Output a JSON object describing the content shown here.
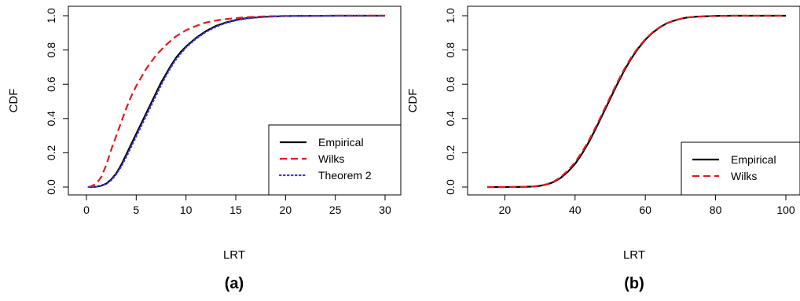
{
  "chart_data": [
    {
      "type": "line",
      "panel_label": "(a)",
      "xlabel": "LRT",
      "ylabel": "CDF",
      "xlim": [
        0,
        30
      ],
      "ylim": [
        0,
        1
      ],
      "xticks": [
        0,
        5,
        10,
        15,
        20,
        25,
        30
      ],
      "xtick_labels": [
        "0",
        "5",
        "10",
        "15",
        "20",
        "25",
        "30"
      ],
      "yticks": [
        0,
        0.2,
        0.4,
        0.6,
        0.8,
        1.0
      ],
      "ytick_labels": [
        "0.0",
        "0.2",
        "0.4",
        "0.6",
        "0.8",
        "1.0"
      ],
      "grid": false,
      "legend_position": "bottom-right",
      "series": [
        {
          "name": "Empirical",
          "color": "#000000",
          "dash": "solid",
          "x": [
            0.2,
            1,
            1.5,
            2,
            2.5,
            3,
            3.5,
            4,
            4.5,
            5,
            5.5,
            6,
            6.5,
            7,
            7.5,
            8,
            8.5,
            9,
            9.5,
            10,
            11,
            12,
            13,
            14,
            15,
            16,
            17,
            18,
            20,
            22,
            25,
            30
          ],
          "y": [
            0.0,
            0.002,
            0.008,
            0.02,
            0.045,
            0.08,
            0.13,
            0.19,
            0.25,
            0.31,
            0.37,
            0.43,
            0.49,
            0.55,
            0.61,
            0.66,
            0.71,
            0.755,
            0.79,
            0.82,
            0.87,
            0.91,
            0.94,
            0.96,
            0.975,
            0.985,
            0.99,
            0.994,
            0.998,
            0.999,
            1.0,
            1.0
          ]
        },
        {
          "name": "Wilks",
          "color": "#e41a1c",
          "dash": "dashed",
          "x": [
            0.2,
            0.5,
            1,
            1.5,
            2,
            2.5,
            3,
            3.5,
            4,
            4.5,
            5,
            5.5,
            6,
            7,
            8,
            9,
            10,
            11,
            12,
            13,
            14,
            15,
            16,
            17,
            18,
            20,
            25,
            30
          ],
          "y": [
            0.0,
            0.005,
            0.02,
            0.06,
            0.13,
            0.22,
            0.3,
            0.38,
            0.46,
            0.53,
            0.59,
            0.64,
            0.69,
            0.77,
            0.83,
            0.88,
            0.915,
            0.94,
            0.96,
            0.972,
            0.98,
            0.986,
            0.991,
            0.994,
            0.996,
            0.999,
            1.0,
            1.0
          ]
        },
        {
          "name": "Theorem 2",
          "color": "#3b3bd9",
          "dash": "dotted",
          "x": [
            0.2,
            1,
            1.5,
            2,
            2.5,
            3,
            3.5,
            4,
            4.5,
            5,
            5.5,
            6,
            6.5,
            7,
            7.5,
            8,
            8.5,
            9,
            9.5,
            10,
            11,
            12,
            13,
            14,
            15,
            16,
            17,
            18,
            20,
            22,
            25,
            30
          ],
          "y": [
            0.0,
            0.002,
            0.007,
            0.018,
            0.04,
            0.075,
            0.12,
            0.175,
            0.235,
            0.295,
            0.355,
            0.415,
            0.475,
            0.535,
            0.595,
            0.65,
            0.7,
            0.745,
            0.78,
            0.815,
            0.865,
            0.905,
            0.935,
            0.957,
            0.972,
            0.983,
            0.989,
            0.993,
            0.997,
            0.999,
            1.0,
            1.0
          ]
        }
      ]
    },
    {
      "type": "line",
      "panel_label": "(b)",
      "xlabel": "LRT",
      "ylabel": "CDF",
      "xlim": [
        15,
        100
      ],
      "ylim": [
        0,
        1
      ],
      "xticks": [
        20,
        40,
        60,
        80,
        100
      ],
      "xtick_labels": [
        "20",
        "40",
        "60",
        "80",
        "100"
      ],
      "yticks": [
        0,
        0.2,
        0.4,
        0.6,
        0.8,
        1.0
      ],
      "ytick_labels": [
        "0.0",
        "0.2",
        "0.4",
        "0.6",
        "0.8",
        "1.0"
      ],
      "grid": false,
      "legend_position": "bottom-right",
      "series": [
        {
          "name": "Empirical",
          "color": "#000000",
          "dash": "solid",
          "x": [
            15,
            20,
            25,
            28,
            30,
            32,
            34,
            36,
            38,
            40,
            42,
            44,
            46,
            48,
            50,
            52,
            54,
            56,
            58,
            60,
            62,
            64,
            66,
            68,
            70,
            72,
            75,
            80,
            85,
            90,
            100
          ],
          "y": [
            0.0,
            0.0,
            0.001,
            0.003,
            0.007,
            0.015,
            0.03,
            0.055,
            0.09,
            0.135,
            0.195,
            0.265,
            0.345,
            0.43,
            0.515,
            0.6,
            0.68,
            0.75,
            0.81,
            0.86,
            0.9,
            0.93,
            0.955,
            0.97,
            0.982,
            0.99,
            0.995,
            0.999,
            1.0,
            1.0,
            1.0
          ]
        },
        {
          "name": "Wilks",
          "color": "#e41a1c",
          "dash": "dashed",
          "x": [
            15,
            20,
            25,
            28,
            30,
            32,
            34,
            36,
            38,
            40,
            42,
            44,
            46,
            48,
            50,
            52,
            54,
            56,
            58,
            60,
            62,
            64,
            66,
            68,
            70,
            72,
            75,
            80,
            85,
            90,
            100
          ],
          "y": [
            0.0,
            0.0,
            0.001,
            0.003,
            0.008,
            0.017,
            0.033,
            0.06,
            0.097,
            0.145,
            0.205,
            0.275,
            0.355,
            0.44,
            0.525,
            0.61,
            0.688,
            0.757,
            0.815,
            0.863,
            0.902,
            0.932,
            0.955,
            0.971,
            0.982,
            0.99,
            0.995,
            0.999,
            1.0,
            1.0,
            1.0
          ]
        }
      ]
    }
  ]
}
